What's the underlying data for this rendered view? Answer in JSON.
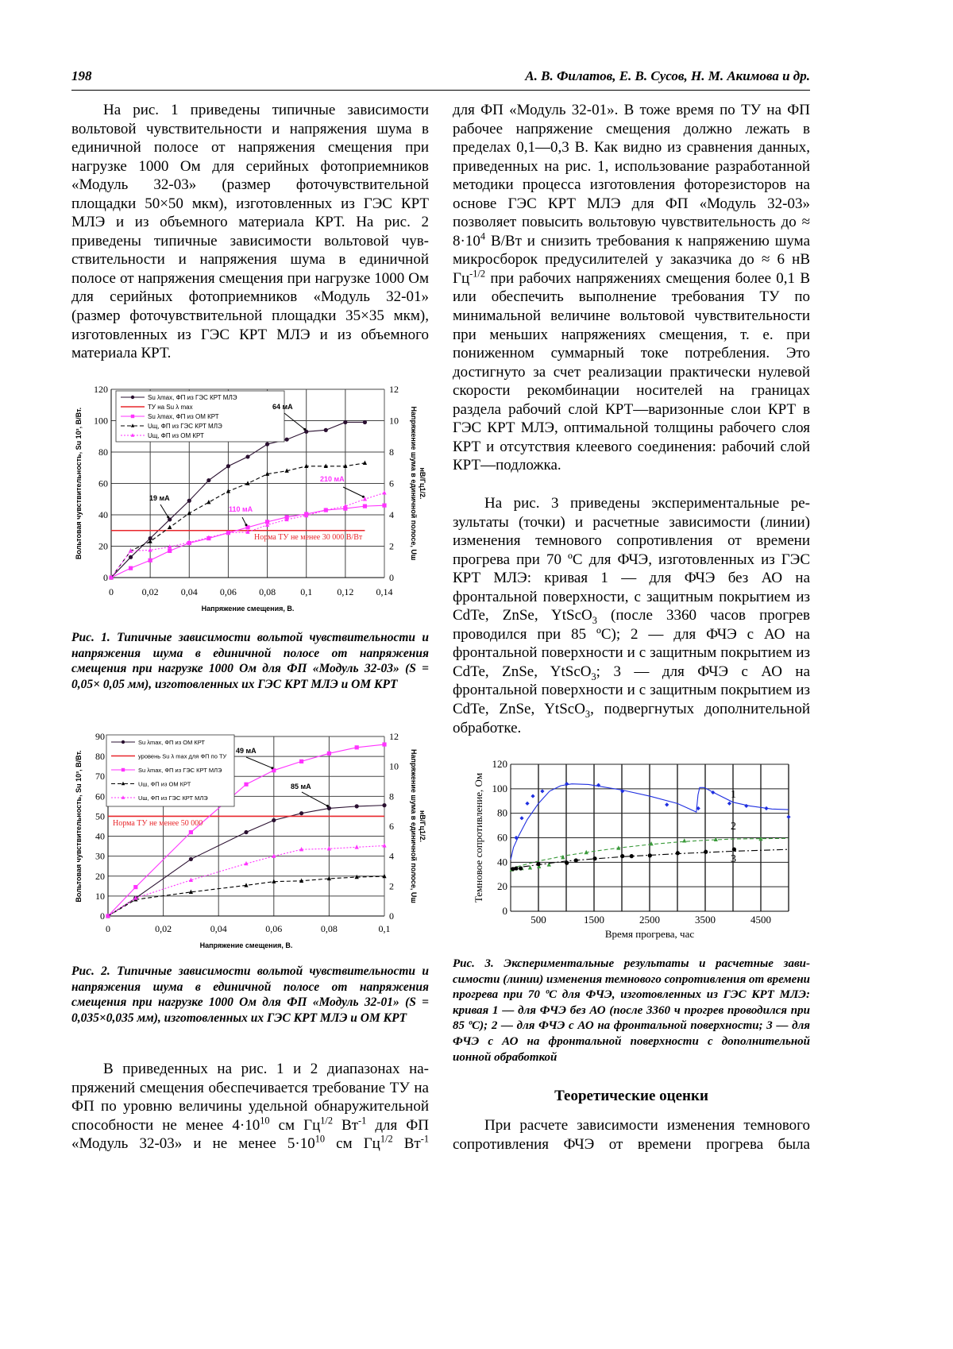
{
  "header": {
    "page_number": "198",
    "authors": "А. В. Филатов, Е. В. Сусов, Н. М. Акимова и др."
  },
  "left_column": {
    "paragraph1": [
      "На рис. 1 приведены типичные зависимости вольтовой чувствительности и напряжения шума в единичной полосе от напряжения смещения при нагрузке 1000 Ом для серийных фотоприемников «Модуль 32-03» (размер фоточувствительной площадки 50×50 мкм), изготовленных из ГЭС КРТ МЛЭ и из объемного материала КРТ. На рис. 2 приведены типичные зависимости вольтовой чув­ствительности и напряжения шума в единичной полосе от напряжения смещения при нагрузке 1000 Ом для серийных фотоприемников «Модуль 32-01» (размер фоточувствительной площадки 35×35 мкм), изготовленных из ГЭС КРТ МЛЭ и из объемного материала КРТ."
    ],
    "caption1": "Рис. 1. Типичные зависимости вольтой чувствительности и напряжения шума в единичной полосе от напряжения смещения при нагрузке 1000 Ом для ФП «Модуль 32-03» (S = 0,05× 0,05 мм), изготовленных их ГЭС КРТ МЛЭ и ОМ КРТ",
    "caption2": "Рис. 2. Типичные зависимости вольтой чувствительности и напряжения шума в единичной полосе от напряжения смещения при нагрузке 1000 Ом для ФП «Модуль 32-01» (S = 0,035×0,035 мм), изготовленных их ГЭС КРТ МЛЭ и ОМ КРТ",
    "paragraph2": [
      "В приведенных на рис. 1 и 2 диапазонах на­пряжений смещения обеспечивается требование ТУ на ФП по уровню величины удельной обнару­жительной способности не менее 4·10",
      {
        "sup": "10"
      },
      " см Гц",
      {
        "sup": "1/2"
      },
      " Вт",
      {
        "sup": "-1"
      },
      " для ФП «Модуль 32-03» и не менее 5·10",
      {
        "sup": "10"
      },
      " см Гц",
      {
        "sup": "1/2"
      },
      " Вт",
      {
        "sup": "-1"
      }
    ]
  },
  "right_column": {
    "paragraph2_cont": [
      "для ФП «Модуль 32-01». В тоже время по ТУ на ФП рабочее напряжение смещения должно лежать в пределах 0,1—0,3 В. Как видно из сравнения данных, приведенных на рис. 1, использование разработанной методики процесса изготовления фоторезисторов на основе ГЭС КРТ МЛЭ для ФП «Модуль 32-03» позволяет повысить вольтовую чувствительность до ≈ 8·10",
      {
        "sup": "4"
      },
      " В/Вт и снизить требо­вания к напряжению шума микросборок предуси­лителей у заказчика до ≈ 6 нВ Гц",
      {
        "sup": "-1/2"
      },
      " при рабочих напряжениях смещения более 0,1 В или обеспе­чить выполнение требования ТУ по минимальной величине вольтовой чувствительности при мень­ших напряжениях смещения, т. е. при пониженном суммарный токе потребления. Это достигнуто за счет реализации практически нулевой скорости рекомбинации носителей на границах раздела ра­бочий слой КРТ—варизонные слои КРТ в ГЭС КРТ МЛЭ, оптимальной толщины рабочего слоя КРТ и отсутствия клеевого соединения: рабочий слой КРТ—подложка."
    ],
    "paragraph3": [
      "На рис. 3 приведены экспериментальные ре­зультаты (точки) и расчетные зависимости (линии) изменения темнового сопротивления от времени прогрева при 70 ºС для ФЧЭ, изготовленных из ГЭС КРТ МЛЭ: кривая 1 — для ФЧЭ без АО на фронтальной поверхности, с защитным покрытием из CdTe, ZnSe, YtScO",
      {
        "sub": "3"
      },
      " (после 3360 часов прогрев проводился при 85 ºС); 2 — для ФЧЭ с АО на фронтальной поверхности и с защитным покрыти­ем из CdTe, ZnSe, YtScO",
      {
        "sub": "3"
      },
      "; 3 — для ФЧЭ с АО на фронтальной поверхности и с защитным покрыти­ем из CdTe, ZnSe, YtScO",
      {
        "sub": "3"
      },
      ", подвергнутых дополни­тельной обработке."
    ],
    "caption3": "Рис. 3. Экспериментальные результаты и расчетные зави­симости (линии) изменения темнового сопротивления от времени прогрева при 70 ºС для ФЧЭ, изготовленных из ГЭС КРТ МЛЭ: кривая 1 — для ФЧЭ без АО (после 3360 ч прогрев проводился при 85 ºС); 2 — для ФЧЭ с АО на фронтальной поверхности; 3 — для ФЧЭ с АО на фрон­тальной поверхности с дополнительной ионной обработкой",
    "section_heading": "Теоретические оценки",
    "paragraph4": [
      "При расчете зависимости изменения темново­го сопротивления ФЧЭ от времени прогрева была"
    ]
  },
  "chart_data": [
    {
      "type": "line",
      "title": "",
      "xlabel": "Напряжение смещения, В.",
      "ylabel": "Вольтовая чувствительность, Su 10³, В/Вт.",
      "y2label": [
        "Напряжение шума в единичной полосе, Uш",
        "нВ/Гц1/2."
      ],
      "xlim": [
        0,
        0.14
      ],
      "ylim": [
        0,
        120
      ],
      "y2lim": [
        0,
        12
      ],
      "xticks": [
        0,
        0.02,
        0.04,
        0.06,
        0.08,
        0.1,
        0.12,
        0.14
      ],
      "xticklabels": [
        "0",
        "0,02",
        "0,04",
        "0,06",
        "0,08",
        "0,1",
        "0,12",
        "0,14"
      ],
      "xgrid": [
        0.02,
        0.04,
        0.06,
        0.08,
        0.1,
        0.12
      ],
      "yticks": [
        0,
        20,
        40,
        60,
        80,
        100,
        120
      ],
      "y2ticks": [
        0,
        2,
        4,
        6,
        8,
        10,
        12
      ],
      "grid": true,
      "legend_position": "top-left",
      "series": [
        {
          "name": "Su λmax, ФП из ГЭС КРТ МЛЭ",
          "axis": "left",
          "color": "#2a1030",
          "dash": "solid",
          "marker": "circle",
          "x": [
            0,
            0.01,
            0.02,
            0.03,
            0.04,
            0.05,
            0.06,
            0.07,
            0.08,
            0.09,
            0.1,
            0.11,
            0.12,
            0.13
          ],
          "y": [
            0,
            13,
            25,
            37,
            49,
            62,
            71,
            77,
            85,
            88,
            93,
            94,
            99,
            99
          ]
        },
        {
          "name": "ТУ на Su λ max",
          "axis": "left",
          "color": "#e8262b",
          "dash": "solid",
          "marker": "none",
          "x": [
            0,
            0.13
          ],
          "y": [
            30,
            30
          ]
        },
        {
          "name": "Su λmax, ФП из ОМ КРТ",
          "axis": "left",
          "color": "#ff33ff",
          "dash": "solid",
          "marker": "square",
          "x": [
            0,
            0.01,
            0.02,
            0.03,
            0.04,
            0.05,
            0.06,
            0.07,
            0.08,
            0.09,
            0.1,
            0.11,
            0.12,
            0.13,
            0.14
          ],
          "y": [
            0,
            6,
            11,
            17,
            22,
            25,
            28.5,
            32,
            35.5,
            38.5,
            40.5,
            43,
            44,
            45.5,
            46
          ]
        },
        {
          "name": "Uщ, ФП из ГЭС КРТ МЛЭ",
          "axis": "right",
          "color": "#000000",
          "dash": "dashed",
          "marker": "triangle",
          "x": [
            0,
            0.01,
            0.02,
            0.03,
            0.04,
            0.05,
            0.06,
            0.07,
            0.08,
            0.09,
            0.1,
            0.11,
            0.12,
            0.13
          ],
          "y": [
            0,
            1.7,
            2.3,
            3.2,
            4.1,
            4.8,
            5.5,
            6.0,
            6.6,
            6.8,
            7.1,
            7.1,
            7.1,
            7.3
          ]
        },
        {
          "name": "Uщ, ФП из ОМ КРТ",
          "axis": "right",
          "color": "#ff33ff",
          "dash": "dotted",
          "marker": "triangle",
          "x": [
            0,
            0.01,
            0.02,
            0.03,
            0.04,
            0.05,
            0.06,
            0.07,
            0.08,
            0.09,
            0.1,
            0.11,
            0.12,
            0.13,
            0.14
          ],
          "y": [
            0,
            1.7,
            1.75,
            1.95,
            2.25,
            2.55,
            2.85,
            2.9,
            3.35,
            3.7,
            3.95,
            4.3,
            4.55,
            5.0,
            5.4
          ]
        }
      ],
      "annotations": [
        {
          "text": "64 мА",
          "color": "#000000",
          "target": [
            0.1,
            93
          ],
          "axis": "left"
        },
        {
          "text": "19 мА",
          "color": "#000000",
          "target": [
            0.03,
            37
          ],
          "axis": "left"
        },
        {
          "text": "110 мА",
          "color": "#ff33ff",
          "target": [
            0.07,
            32
          ],
          "axis": "left"
        },
        {
          "text": "210 мА",
          "color": "#ff33ff",
          "target": [
            0.13,
            5.0
          ],
          "axis": "right"
        },
        {
          "text": "Норма ТУ не менее 30 000 В/Вт",
          "color": "#e8262b"
        }
      ]
    },
    {
      "type": "line",
      "title": "",
      "xlabel": "Напряжение смещения, В.",
      "ylabel": "Вольтовая чувствительность, Su 10³, В/Вт.",
      "y2label": [
        "Напряжение шума в единичной полосе, Uш",
        "нВ/Гц1/2."
      ],
      "xlim": [
        0,
        0.1
      ],
      "ylim": [
        0,
        90
      ],
      "y2lim": [
        0,
        12
      ],
      "xticks": [
        0,
        0.02,
        0.04,
        0.06,
        0.08,
        0.1
      ],
      "xticklabels": [
        "0",
        "0,02",
        "0,04",
        "0,06",
        "0,08",
        "0,1"
      ],
      "xgrid": [
        0.02,
        0.04,
        0.06,
        0.08
      ],
      "yticks": [
        0,
        10,
        20,
        30,
        40,
        50,
        60,
        70,
        80,
        90
      ],
      "y2ticks": [
        0,
        2,
        4,
        6,
        8,
        10,
        12
      ],
      "grid": true,
      "legend_position": "top-left",
      "series": [
        {
          "name": "Su λmax, ФП из ОМ КРТ",
          "axis": "left",
          "color": "#2a1030",
          "dash": "solid",
          "marker": "circle",
          "x": [
            0,
            0.01,
            0.03,
            0.05,
            0.06,
            0.07,
            0.08,
            0.09,
            0.1
          ],
          "y": [
            0,
            9,
            28.5,
            42,
            48,
            51.5,
            54,
            55,
            55.5
          ]
        },
        {
          "name": "уровень Su λ max для ФП по ТУ",
          "axis": "left",
          "color": "#e8262b",
          "dash": "solid",
          "marker": "none",
          "x": [
            0,
            0.1
          ],
          "y": [
            50,
            50
          ]
        },
        {
          "name": "Su λmax, ФП из ГЭС КРТ МЛЭ",
          "axis": "left",
          "color": "#ff33ff",
          "dash": "solid",
          "marker": "square",
          "x": [
            0,
            0.01,
            0.03,
            0.05,
            0.06,
            0.07,
            0.08,
            0.09,
            0.1
          ],
          "y": [
            0,
            14.5,
            42,
            66,
            73,
            77.5,
            81.5,
            84.5,
            86
          ]
        },
        {
          "name": "Uш, ФП из ОМ КРТ",
          "axis": "right",
          "color": "#000000",
          "dash": "dashed",
          "marker": "triangle",
          "x": [
            0,
            0.01,
            0.03,
            0.05,
            0.06,
            0.07,
            0.08,
            0.09,
            0.1
          ],
          "y": [
            0,
            1.1,
            1.6,
            2.05,
            2.3,
            2.35,
            2.5,
            2.6,
            2.65
          ]
        },
        {
          "name": "Uш, ФП из ГЭС КРТ МЛЭ",
          "axis": "right",
          "color": "#ff33ff",
          "dash": "dotted",
          "marker": "triangle",
          "x": [
            0,
            0.01,
            0.03,
            0.05,
            0.06,
            0.07,
            0.08,
            0.09,
            0.1
          ],
          "y": [
            0,
            1.2,
            2.4,
            3.5,
            4.0,
            4.45,
            4.5,
            4.6,
            4.7
          ]
        }
      ],
      "annotations": [
        {
          "text": "49 мА",
          "color": "#000000",
          "target": [
            0.06,
            73
          ],
          "axis": "left"
        },
        {
          "text": "85 мА",
          "color": "#000000",
          "target": [
            0.08,
            54
          ],
          "axis": "left"
        },
        {
          "text": "Норма ТУ не менее 50 000",
          "color": "#e8262b"
        }
      ]
    },
    {
      "type": "scatter",
      "title": "",
      "xlabel": "Время прогрева, час",
      "ylabel": "Темновое сопротивление, Ом",
      "xlim": [
        0,
        5000
      ],
      "ylim": [
        0,
        120
      ],
      "xticks": [
        500,
        1500,
        2500,
        3500,
        4500
      ],
      "xticklabels": [
        "500",
        "1500",
        "2500",
        "3500",
        "4500"
      ],
      "xgrid": [
        500,
        1000,
        1500,
        2000,
        2500,
        3000,
        3500,
        4000,
        4500,
        5000
      ],
      "yticks": [
        0,
        20,
        40,
        60,
        80,
        100,
        120
      ],
      "grid": true,
      "series": [
        {
          "name": "1",
          "color": "#1f2fe0",
          "marker": "diamond",
          "dash": "solid",
          "x": [
            100,
            200,
            300,
            400,
            570,
            1010,
            1580,
            2010,
            2810,
            3375,
            3640,
            3935,
            4240,
            4600,
            5000
          ],
          "y": [
            60,
            76,
            88,
            94,
            98,
            104,
            103,
            98,
            87,
            84,
            97,
            88,
            86,
            84,
            77
          ],
          "fit_x": [
            0,
            50,
            150,
            300,
            500,
            700,
            900,
            1100,
            1400,
            2000,
            2500,
            3000,
            3340,
            3370,
            3400,
            3480,
            3650,
            4000,
            4300,
            4700,
            5000
          ],
          "fit_y": [
            42,
            52,
            62,
            75,
            88,
            98,
            102.5,
            104,
            103.5,
            99,
            94,
            88,
            81,
            95,
            101,
            101,
            97,
            89,
            86,
            83.5,
            83
          ]
        },
        {
          "name": "2",
          "color": "#3a9a3a",
          "marker": "triangle",
          "dash": "dashed",
          "x": [
            20,
            100,
            200,
            350,
            510,
            690,
            940,
            1360,
            1940,
            2530,
            3125,
            3690,
            4500
          ],
          "y": [
            34,
            35,
            35,
            35.5,
            36.5,
            38,
            44,
            48,
            51.5,
            55,
            57.5,
            58.5,
            59
          ],
          "fit_x": [
            0,
            500,
            1000,
            1500,
            2000,
            2500,
            3000,
            3500,
            4000,
            5000
          ],
          "fit_y": [
            35,
            41,
            45.5,
            49,
            52,
            54.5,
            56.5,
            58,
            59,
            59.5
          ]
        },
        {
          "name": "3",
          "color": "#000000",
          "marker": "circle",
          "dash": "dashdot",
          "x": [
            40,
            100,
            180,
            500,
            1010,
            1175,
            1515,
            2010,
            2175,
            2505,
            3005,
            3510,
            4020
          ],
          "y": [
            34.5,
            35,
            35,
            38.5,
            39.5,
            41.5,
            43,
            45,
            45,
            45.5,
            47.5,
            48.5,
            50.5
          ],
          "fit_x": [
            0,
            1000,
            2000,
            3000,
            4000,
            5000
          ],
          "fit_y": [
            35,
            41,
            44.5,
            47,
            49,
            50.5
          ]
        }
      ]
    }
  ]
}
